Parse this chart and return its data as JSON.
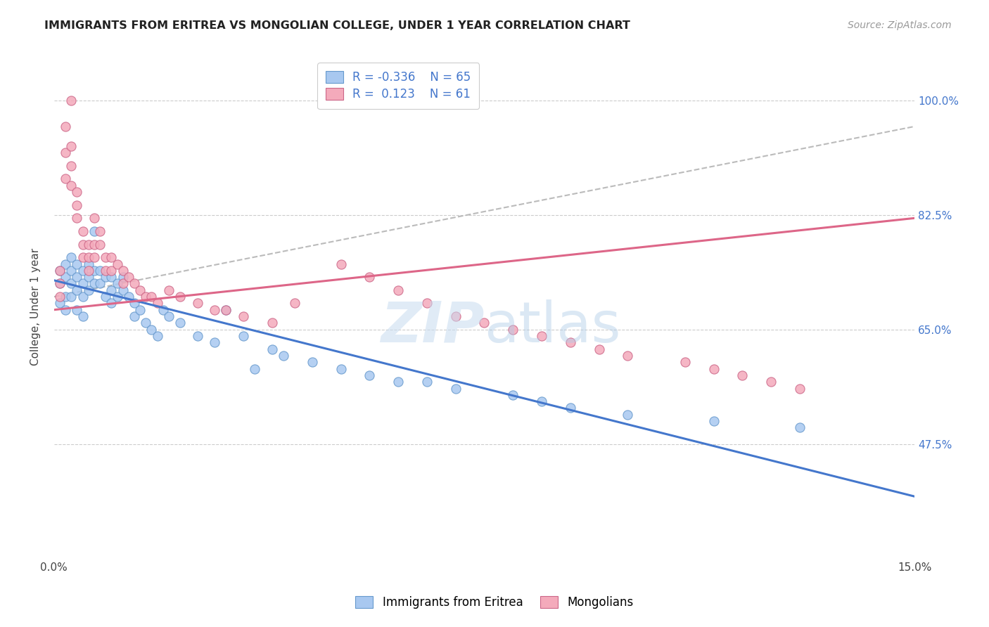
{
  "title": "IMMIGRANTS FROM ERITREA VS MONGOLIAN COLLEGE, UNDER 1 YEAR CORRELATION CHART",
  "source": "Source: ZipAtlas.com",
  "ylabel": "College, Under 1 year",
  "ytick_labels": [
    "100.0%",
    "82.5%",
    "65.0%",
    "47.5%"
  ],
  "ytick_values": [
    1.0,
    0.825,
    0.65,
    0.475
  ],
  "xmin": 0.0,
  "xmax": 0.15,
  "ymin": 0.3,
  "ymax": 1.07,
  "color_blue": "#A8C8F0",
  "color_pink": "#F4AABB",
  "color_blue_edge": "#6699CC",
  "color_pink_edge": "#CC6688",
  "color_line_blue": "#4477CC",
  "color_line_pink": "#DD6688",
  "color_line_dashed": "#BBBBBB",
  "blue_scatter_x": [
    0.001,
    0.001,
    0.001,
    0.002,
    0.002,
    0.002,
    0.002,
    0.003,
    0.003,
    0.003,
    0.003,
    0.004,
    0.004,
    0.004,
    0.004,
    0.005,
    0.005,
    0.005,
    0.005,
    0.006,
    0.006,
    0.006,
    0.007,
    0.007,
    0.007,
    0.008,
    0.008,
    0.009,
    0.009,
    0.01,
    0.01,
    0.01,
    0.011,
    0.011,
    0.012,
    0.012,
    0.013,
    0.014,
    0.014,
    0.015,
    0.016,
    0.017,
    0.018,
    0.019,
    0.02,
    0.022,
    0.025,
    0.028,
    0.03,
    0.033,
    0.035,
    0.038,
    0.04,
    0.045,
    0.05,
    0.055,
    0.06,
    0.065,
    0.07,
    0.08,
    0.085,
    0.09,
    0.1,
    0.115,
    0.13
  ],
  "blue_scatter_y": [
    0.74,
    0.72,
    0.69,
    0.75,
    0.73,
    0.7,
    0.68,
    0.76,
    0.74,
    0.72,
    0.7,
    0.75,
    0.73,
    0.71,
    0.68,
    0.74,
    0.72,
    0.7,
    0.67,
    0.75,
    0.73,
    0.71,
    0.74,
    0.72,
    0.8,
    0.74,
    0.72,
    0.73,
    0.7,
    0.73,
    0.71,
    0.69,
    0.72,
    0.7,
    0.73,
    0.71,
    0.7,
    0.69,
    0.67,
    0.68,
    0.66,
    0.65,
    0.64,
    0.68,
    0.67,
    0.66,
    0.64,
    0.63,
    0.68,
    0.64,
    0.59,
    0.62,
    0.61,
    0.6,
    0.59,
    0.58,
    0.57,
    0.57,
    0.56,
    0.55,
    0.54,
    0.53,
    0.52,
    0.51,
    0.5
  ],
  "pink_scatter_x": [
    0.001,
    0.001,
    0.001,
    0.002,
    0.002,
    0.002,
    0.003,
    0.003,
    0.003,
    0.003,
    0.004,
    0.004,
    0.004,
    0.005,
    0.005,
    0.005,
    0.006,
    0.006,
    0.006,
    0.007,
    0.007,
    0.007,
    0.008,
    0.008,
    0.009,
    0.009,
    0.01,
    0.01,
    0.011,
    0.012,
    0.012,
    0.013,
    0.014,
    0.015,
    0.016,
    0.017,
    0.018,
    0.02,
    0.022,
    0.025,
    0.028,
    0.03,
    0.033,
    0.038,
    0.042,
    0.05,
    0.055,
    0.06,
    0.065,
    0.07,
    0.075,
    0.08,
    0.085,
    0.09,
    0.095,
    0.1,
    0.11,
    0.115,
    0.12,
    0.125,
    0.13
  ],
  "pink_scatter_y": [
    0.74,
    0.72,
    0.7,
    0.96,
    0.92,
    0.88,
    1.0,
    0.93,
    0.9,
    0.87,
    0.86,
    0.84,
    0.82,
    0.8,
    0.78,
    0.76,
    0.78,
    0.76,
    0.74,
    0.82,
    0.78,
    0.76,
    0.8,
    0.78,
    0.76,
    0.74,
    0.76,
    0.74,
    0.75,
    0.74,
    0.72,
    0.73,
    0.72,
    0.71,
    0.7,
    0.7,
    0.69,
    0.71,
    0.7,
    0.69,
    0.68,
    0.68,
    0.67,
    0.66,
    0.69,
    0.75,
    0.73,
    0.71,
    0.69,
    0.67,
    0.66,
    0.65,
    0.64,
    0.63,
    0.62,
    0.61,
    0.6,
    0.59,
    0.58,
    0.57,
    0.56
  ],
  "blue_line_x": [
    0.0,
    0.15
  ],
  "blue_line_y": [
    0.725,
    0.395
  ],
  "pink_line_x": [
    0.0,
    0.15
  ],
  "pink_line_y": [
    0.68,
    0.82
  ],
  "dashed_line_x": [
    0.0,
    0.15
  ],
  "dashed_line_y": [
    0.7,
    0.96
  ]
}
